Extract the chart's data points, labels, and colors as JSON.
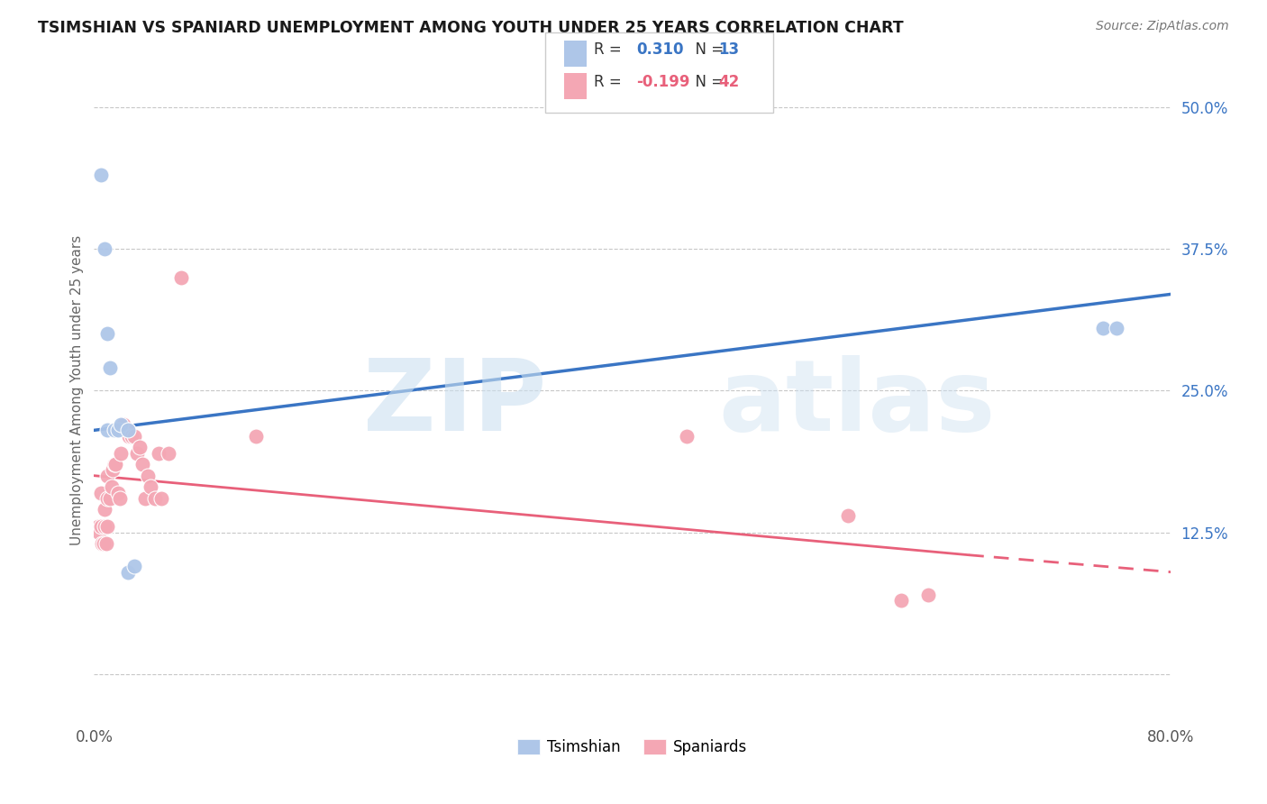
{
  "title": "TSIMSHIAN VS SPANIARD UNEMPLOYMENT AMONG YOUTH UNDER 25 YEARS CORRELATION CHART",
  "source": "Source: ZipAtlas.com",
  "ylabel": "Unemployment Among Youth under 25 years",
  "ytick_labels": [
    "",
    "12.5%",
    "25.0%",
    "37.5%",
    "50.0%"
  ],
  "ytick_values": [
    0.0,
    0.125,
    0.25,
    0.375,
    0.5
  ],
  "xmin": 0.0,
  "xmax": 0.8,
  "ymin": -0.04,
  "ymax": 0.54,
  "legend_color1": "#aec6e8",
  "legend_color2": "#f4a7b4",
  "tsimshian_x": [
    0.005,
    0.008,
    0.01,
    0.01,
    0.012,
    0.015,
    0.018,
    0.02,
    0.025,
    0.025,
    0.03,
    0.75,
    0.76
  ],
  "tsimshian_y": [
    0.44,
    0.375,
    0.3,
    0.215,
    0.27,
    0.215,
    0.215,
    0.22,
    0.215,
    0.09,
    0.095,
    0.305,
    0.305
  ],
  "spaniard_x": [
    0.003,
    0.004,
    0.005,
    0.005,
    0.006,
    0.007,
    0.008,
    0.008,
    0.009,
    0.01,
    0.01,
    0.01,
    0.012,
    0.013,
    0.014,
    0.015,
    0.016,
    0.018,
    0.019,
    0.02,
    0.022,
    0.024,
    0.025,
    0.026,
    0.028,
    0.03,
    0.032,
    0.034,
    0.036,
    0.038,
    0.04,
    0.042,
    0.045,
    0.048,
    0.05,
    0.055,
    0.065,
    0.12,
    0.44,
    0.56,
    0.6,
    0.62
  ],
  "spaniard_y": [
    0.13,
    0.125,
    0.16,
    0.13,
    0.115,
    0.115,
    0.145,
    0.13,
    0.115,
    0.175,
    0.155,
    0.13,
    0.155,
    0.165,
    0.18,
    0.185,
    0.185,
    0.16,
    0.155,
    0.195,
    0.22,
    0.215,
    0.215,
    0.21,
    0.21,
    0.21,
    0.195,
    0.2,
    0.185,
    0.155,
    0.175,
    0.165,
    0.155,
    0.195,
    0.155,
    0.195,
    0.35,
    0.21,
    0.21,
    0.14,
    0.065,
    0.07
  ],
  "tsimshian_dot_color": "#aec6e8",
  "spaniard_dot_color": "#f4a7b4",
  "tsimshian_line_color": "#3a75c4",
  "spaniard_line_color": "#e8607a",
  "grid_color": "#c8c8c8",
  "background_color": "#ffffff",
  "tsimshian_line_x0": 0.0,
  "tsimshian_line_y0": 0.215,
  "tsimshian_line_x1": 0.8,
  "tsimshian_line_y1": 0.335,
  "spaniard_line_x0": 0.0,
  "spaniard_line_y0": 0.175,
  "spaniard_line_x1_solid": 0.65,
  "spaniard_line_y1_solid": 0.105,
  "spaniard_line_x1": 0.8,
  "spaniard_line_y1": 0.09
}
